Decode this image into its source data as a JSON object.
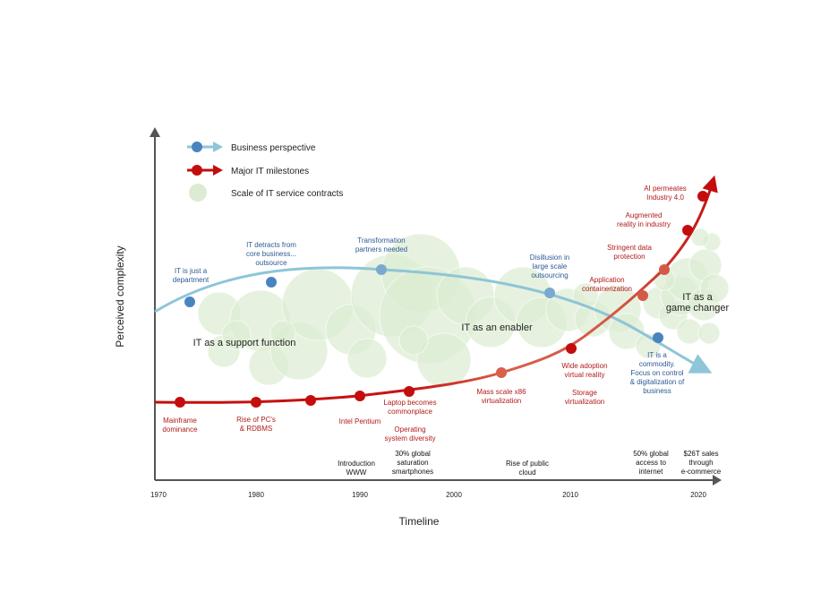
{
  "axes": {
    "y_label": "Perceived complexity",
    "x_label": "Timeline",
    "ticks": [
      "1970",
      "1980",
      "1990",
      "2000",
      "2010",
      "2020"
    ]
  },
  "legend": {
    "business": "Business perspective",
    "milestones": "Major IT milestones",
    "contracts": "Scale of IT service contracts"
  },
  "phases": {
    "support": "IT as a support function",
    "enabler": "IT as an enabler",
    "changer": [
      "IT as a",
      "game changer"
    ]
  },
  "business_labels": [
    [
      "IT is just a",
      "department"
    ],
    [
      "IT detracts from",
      "core business...",
      "outsource"
    ],
    [
      "Transformation",
      "partners needed"
    ],
    [
      "Disillusion in",
      "large scale",
      "outsourcing"
    ],
    [
      "IT is a",
      "commodity.",
      "Focus on control",
      "& digitalization of",
      "business"
    ]
  ],
  "milestone_labels": [
    [
      "Mainframe",
      "dominance"
    ],
    [
      "Rise of PC's",
      "& RDBMS"
    ],
    [
      "Intel Pentium"
    ],
    [
      "Laptop becomes",
      "commonplace"
    ],
    [
      "Operating",
      "system diversity"
    ],
    [
      "Mass scale x86",
      "virtualization"
    ],
    [
      "Wide adoption",
      "virtual reality"
    ],
    [
      "Storage",
      "virtualization"
    ],
    [
      "Application",
      "containerization"
    ],
    [
      "Stringent data",
      "protection"
    ],
    [
      "Augmented",
      "reality in industry"
    ],
    [
      "AI permeates",
      "Industry 4.0"
    ]
  ],
  "timeline_events": [
    [
      "Introduction",
      "WWW"
    ],
    [
      "30% global",
      "saturation",
      "smartphones"
    ],
    [
      "Rise of public",
      "cloud"
    ],
    [
      "50% global",
      "access to",
      "internet"
    ],
    [
      "$26T sales",
      "through",
      "e-commerce"
    ]
  ],
  "colors": {
    "business_line": "#8ec5d8",
    "business_dot": "#4a84bf",
    "business_text": "#2c5a95",
    "milestone_line": "#c81414",
    "milestone_dot": "#c40d0d",
    "milestone_text": "#b21a1a",
    "bubble": "#dcecd2",
    "axis": "#555555"
  }
}
